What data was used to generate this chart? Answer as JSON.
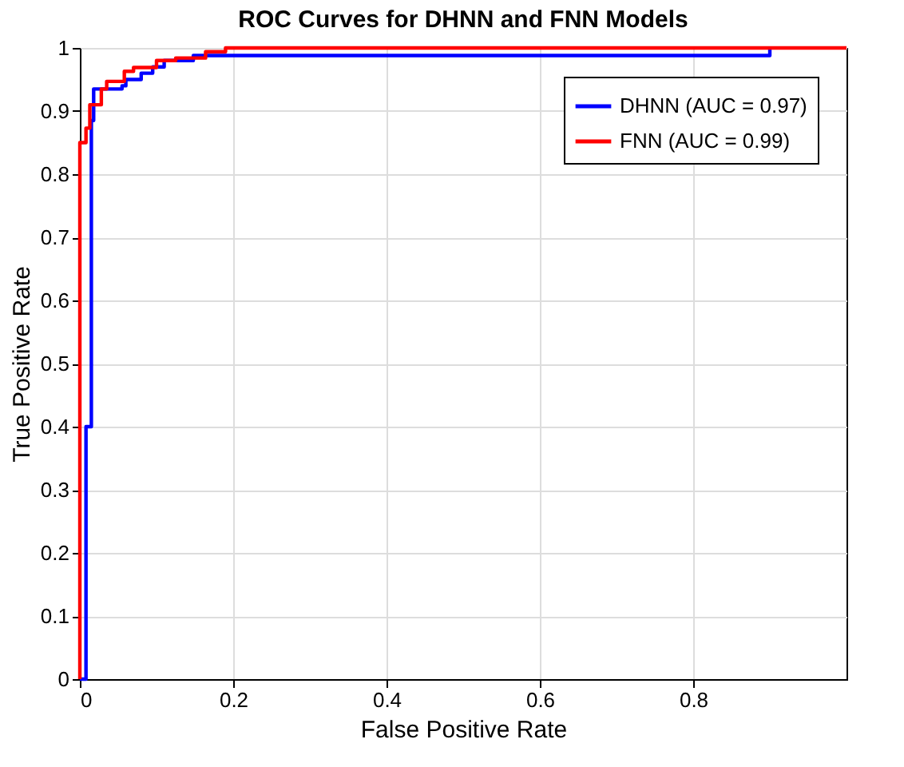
{
  "chart_data": {
    "type": "step",
    "title": "ROC Curves for DHNN and FNN Models",
    "xlabel": "False Positive Rate",
    "ylabel": "True Positive Rate",
    "xlim": [
      0,
      1
    ],
    "xticks": [
      0,
      0.2,
      0.4,
      0.6,
      0.8
    ],
    "ylim": [
      0,
      1
    ],
    "yticks": [
      0,
      0.1,
      0.2,
      0.3,
      0.4,
      0.5,
      0.6,
      0.7,
      0.8,
      0.9,
      1
    ],
    "grid": true,
    "legend": "top right",
    "line_style": "solid",
    "marker": "none",
    "series": [
      {
        "name": "DHNN (AUC = 0.97)",
        "color": "#0000ff",
        "x": [
          0,
          0.008,
          0.015,
          0.018,
          0.055,
          0.06,
          0.08,
          0.095,
          0.11,
          0.148,
          0.9
        ],
        "values": [
          0,
          0.4,
          0.885,
          0.935,
          0.94,
          0.95,
          0.96,
          0.97,
          0.98,
          0.988,
          1
        ]
      },
      {
        "name": "FNN (AUC = 0.99)",
        "color": "#ff0000",
        "x": [
          0,
          0,
          0.008,
          0.013,
          0.028,
          0.035,
          0.058,
          0.07,
          0.1,
          0.125,
          0.164,
          0.19,
          1
        ],
        "values": [
          0,
          0.85,
          0.873,
          0.91,
          0.935,
          0.947,
          0.963,
          0.969,
          0.98,
          0.984,
          0.994,
          1,
          1
        ]
      }
    ]
  }
}
